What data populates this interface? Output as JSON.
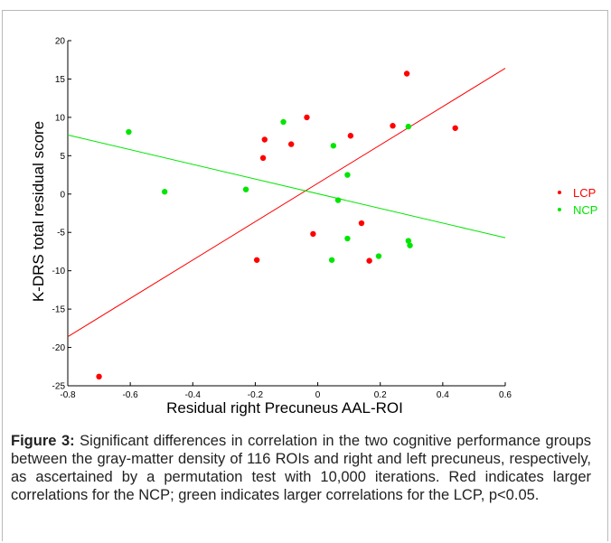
{
  "chart_data": {
    "type": "scatter",
    "xlabel": "Residual right Precuneus AAL-ROI",
    "ylabel": "K-DRS total residual score",
    "xlim": [
      -0.8,
      0.6
    ],
    "ylim": [
      -25,
      20
    ],
    "xticks": [
      -0.8,
      -0.6,
      -0.4,
      -0.2,
      0,
      0.2,
      0.4,
      0.6
    ],
    "yticks": [
      -25,
      -20,
      -15,
      -10,
      -5,
      0,
      5,
      10,
      15,
      20
    ],
    "xtick_labels": [
      "-0.8",
      "-0.6",
      "-0.4",
      "-0.2",
      "0",
      "0.2",
      "0.4",
      "0.6"
    ],
    "ytick_labels": [
      "-25",
      "-20",
      "-15",
      "-10",
      "-5",
      "0",
      "5",
      "10",
      "15",
      "20"
    ],
    "grid": false,
    "legend_position": "right",
    "series": [
      {
        "name": "LCP",
        "color": "#ff0000",
        "points": [
          [
            -0.7,
            -23.8
          ],
          [
            -0.195,
            -8.6
          ],
          [
            -0.175,
            4.7
          ],
          [
            -0.17,
            7.1
          ],
          [
            -0.085,
            6.5
          ],
          [
            -0.035,
            10.0
          ],
          [
            -0.015,
            -5.2
          ],
          [
            0.105,
            7.6
          ],
          [
            0.14,
            -3.8
          ],
          [
            0.165,
            -8.7
          ],
          [
            0.24,
            8.9
          ],
          [
            0.285,
            15.7
          ],
          [
            0.44,
            8.6
          ]
        ],
        "fit": [
          [
            -0.8,
            -18.6
          ],
          [
            0.6,
            16.4
          ]
        ]
      },
      {
        "name": "NCP",
        "color": "#00e600",
        "points": [
          [
            -0.605,
            8.1
          ],
          [
            -0.49,
            0.3
          ],
          [
            -0.23,
            0.6
          ],
          [
            -0.11,
            9.4
          ],
          [
            0.045,
            -8.6
          ],
          [
            0.05,
            6.3
          ],
          [
            0.065,
            -0.8
          ],
          [
            0.095,
            -5.8
          ],
          [
            0.095,
            2.5
          ],
          [
            0.195,
            -8.1
          ],
          [
            0.29,
            8.8
          ],
          [
            0.29,
            -6.1
          ],
          [
            0.295,
            -6.7
          ]
        ],
        "fit": [
          [
            -0.8,
            7.7
          ],
          [
            0.6,
            -5.7
          ]
        ]
      }
    ]
  },
  "caption": {
    "label": "Figure 3:",
    "text": " Significant differences in correlation in the two cognitive performance groups between the gray-matter density of 116 ROIs and right and left precuneus, respectively, as ascertained by a permutation test with 10,000 iterations. Red indicates larger correlations for the NCP; green indicates larger correlations for the LCP, p<0.05."
  }
}
